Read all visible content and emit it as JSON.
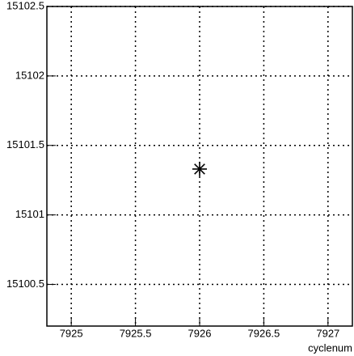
{
  "chart_data": {
    "type": "scatter",
    "x_label": "cyclenum",
    "series": [
      {
        "x": [
          7926
        ],
        "values": [
          15101.33
        ],
        "color": "#000000",
        "marker": "star"
      }
    ],
    "xlim": [
      7924.81,
      7927.19
    ],
    "xticks": [
      7925,
      7925.5,
      7926,
      7926.5,
      7927
    ],
    "ylim": [
      15100.2,
      15102.5
    ],
    "yticks": [
      15100.5,
      15101,
      15101.5,
      15102,
      15102.5
    ],
    "grid": true
  }
}
